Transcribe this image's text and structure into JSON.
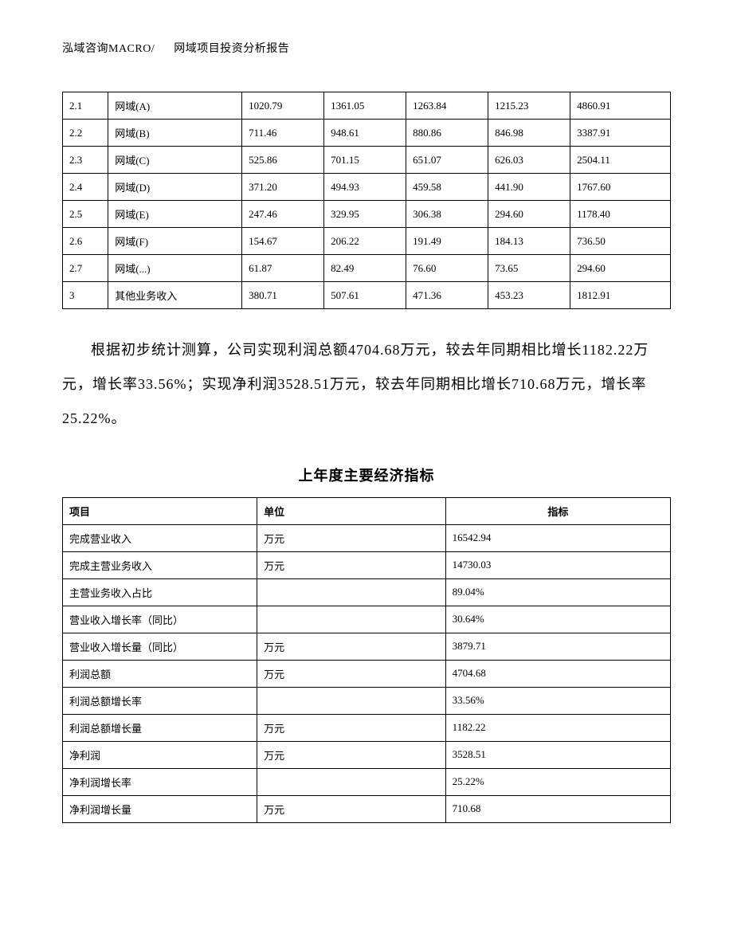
{
  "header": {
    "company": "泓域咨询MACRO/",
    "title": "网域项目投资分析报告"
  },
  "table1": {
    "rows": [
      [
        "2.1",
        "网域(A)",
        "1020.79",
        "1361.05",
        "1263.84",
        "1215.23",
        "4860.91"
      ],
      [
        "2.2",
        "网域(B)",
        "711.46",
        "948.61",
        "880.86",
        "846.98",
        "3387.91"
      ],
      [
        "2.3",
        "网域(C)",
        "525.86",
        "701.15",
        "651.07",
        "626.03",
        "2504.11"
      ],
      [
        "2.4",
        "网域(D)",
        "371.20",
        "494.93",
        "459.58",
        "441.90",
        "1767.60"
      ],
      [
        "2.5",
        "网域(E)",
        "247.46",
        "329.95",
        "306.38",
        "294.60",
        "1178.40"
      ],
      [
        "2.6",
        "网域(F)",
        "154.67",
        "206.22",
        "191.49",
        "184.13",
        "736.50"
      ],
      [
        "2.7",
        "网域(...)",
        "61.87",
        "82.49",
        "76.60",
        "73.65",
        "294.60"
      ],
      [
        "3",
        "其他业务收入",
        "380.71",
        "507.61",
        "471.36",
        "453.23",
        "1812.91"
      ]
    ]
  },
  "paragraph": "根据初步统计测算，公司实现利润总额4704.68万元，较去年同期相比增长1182.22万元，增长率33.56%；实现净利润3528.51万元，较去年同期相比增长710.68万元，增长率25.22%。",
  "section_title": "上年度主要经济指标",
  "table2": {
    "headers": [
      "项目",
      "单位",
      "指标"
    ],
    "rows": [
      [
        "完成营业收入",
        "万元",
        "16542.94"
      ],
      [
        "完成主营业务收入",
        "万元",
        "14730.03"
      ],
      [
        "主营业务收入占比",
        "",
        "89.04%"
      ],
      [
        "营业收入增长率（同比）",
        "",
        "30.64%"
      ],
      [
        "营业收入增长量（同比）",
        "万元",
        "3879.71"
      ],
      [
        "利润总额",
        "万元",
        "4704.68"
      ],
      [
        "利润总额增长率",
        "",
        "33.56%"
      ],
      [
        "利润总额增长量",
        "万元",
        "1182.22"
      ],
      [
        "净利润",
        "万元",
        "3528.51"
      ],
      [
        "净利润增长率",
        "",
        "25.22%"
      ],
      [
        "净利润增长量",
        "万元",
        "710.68"
      ]
    ]
  }
}
